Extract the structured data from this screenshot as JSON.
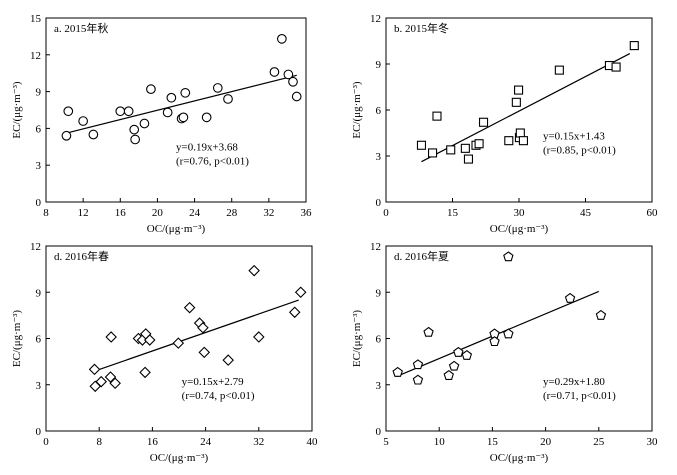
{
  "chart_data": [
    {
      "type": "scatter",
      "id": "a",
      "title": "a. 2015年秋",
      "xlabel": "OC/(μg·m⁻³)",
      "ylabel": "EC/(μg·m⁻³)",
      "xlim": [
        8,
        36
      ],
      "ylim": [
        0,
        15
      ],
      "xticks": [
        8,
        12,
        16,
        20,
        24,
        28,
        32,
        36
      ],
      "yticks": [
        0,
        3,
        6,
        9,
        12,
        15
      ],
      "marker": "circle",
      "points": [
        [
          10.2,
          5.4
        ],
        [
          10.4,
          7.4
        ],
        [
          12.0,
          6.6
        ],
        [
          13.1,
          5.5
        ],
        [
          16.0,
          7.4
        ],
        [
          16.9,
          7.4
        ],
        [
          17.5,
          5.9
        ],
        [
          17.6,
          5.1
        ],
        [
          18.6,
          6.4
        ],
        [
          19.3,
          9.2
        ],
        [
          21.1,
          7.3
        ],
        [
          21.5,
          8.5
        ],
        [
          22.6,
          6.8
        ],
        [
          22.8,
          6.9
        ],
        [
          23.0,
          8.9
        ],
        [
          25.3,
          6.9
        ],
        [
          26.5,
          9.3
        ],
        [
          27.6,
          8.4
        ],
        [
          32.6,
          10.6
        ],
        [
          33.4,
          13.3
        ],
        [
          34.1,
          10.4
        ],
        [
          34.6,
          9.8
        ],
        [
          35.0,
          8.6
        ]
      ],
      "fit": {
        "slope": 0.19,
        "intercept": 3.68,
        "range": [
          10,
          35
        ]
      },
      "equation": "y=0.19x+3.68",
      "stats": "(r=0.76, p<0.01)"
    },
    {
      "type": "scatter",
      "id": "b",
      "title": "b. 2015年冬",
      "xlabel": "OC/(μg·m⁻³)",
      "ylabel": "EC/(μg·m⁻³)",
      "xlim": [
        0,
        60
      ],
      "ylim": [
        0,
        12
      ],
      "xticks": [
        0,
        15,
        30,
        45,
        60
      ],
      "yticks": [
        0,
        3,
        6,
        9,
        12
      ],
      "marker": "square",
      "points": [
        [
          8.0,
          3.7
        ],
        [
          10.5,
          3.2
        ],
        [
          11.5,
          5.6
        ],
        [
          14.6,
          3.4
        ],
        [
          17.9,
          3.5
        ],
        [
          18.6,
          2.8
        ],
        [
          20.3,
          3.7
        ],
        [
          21.0,
          3.8
        ],
        [
          22.0,
          5.2
        ],
        [
          27.7,
          4.0
        ],
        [
          29.4,
          6.5
        ],
        [
          29.9,
          7.3
        ],
        [
          30.1,
          4.2
        ],
        [
          30.3,
          4.5
        ],
        [
          31.0,
          4.0
        ],
        [
          39.1,
          8.6
        ],
        [
          50.4,
          8.9
        ],
        [
          51.9,
          8.8
        ],
        [
          56.0,
          10.2
        ]
      ],
      "fit": {
        "slope": 0.15,
        "intercept": 1.43,
        "range": [
          8,
          55
        ]
      },
      "equation": "y=0.15x+1.43",
      "stats": "(r=0.85, p<0.01)"
    },
    {
      "type": "scatter",
      "id": "c",
      "title": "d. 2016年春",
      "xlabel": "OC/(μg·m⁻³)",
      "ylabel": "EC/(μg·m⁻³)",
      "xlim": [
        0,
        40
      ],
      "ylim": [
        0,
        12
      ],
      "xticks": [
        0,
        8,
        16,
        24,
        32,
        40
      ],
      "yticks": [
        0,
        3,
        6,
        9,
        12
      ],
      "marker": "diamond",
      "points": [
        [
          7.3,
          4.0
        ],
        [
          7.4,
          2.9
        ],
        [
          8.3,
          3.2
        ],
        [
          9.7,
          3.5
        ],
        [
          9.8,
          6.1
        ],
        [
          10.4,
          3.1
        ],
        [
          13.9,
          6.0
        ],
        [
          14.5,
          5.9
        ],
        [
          14.9,
          3.8
        ],
        [
          15.0,
          6.3
        ],
        [
          15.6,
          5.9
        ],
        [
          19.9,
          5.7
        ],
        [
          21.6,
          8.0
        ],
        [
          23.1,
          7.0
        ],
        [
          23.6,
          6.7
        ],
        [
          23.8,
          5.1
        ],
        [
          27.4,
          4.6
        ],
        [
          31.3,
          10.4
        ],
        [
          32.0,
          6.1
        ],
        [
          37.4,
          7.7
        ],
        [
          38.3,
          9.0
        ]
      ],
      "fit": {
        "slope": 0.15,
        "intercept": 2.79,
        "range": [
          7,
          38
        ]
      },
      "equation": "y=0.15x+2.79",
      "stats": "(r=0.74, p<0.01)"
    },
    {
      "type": "scatter",
      "id": "d",
      "title": "d. 2016年夏",
      "xlabel": "OC/(μg·m⁻³)",
      "ylabel": "EC/(μg·m⁻³)",
      "xlim": [
        5,
        30
      ],
      "ylim": [
        0,
        12
      ],
      "xticks": [
        5,
        10,
        15,
        20,
        25,
        30
      ],
      "yticks": [
        0,
        3,
        6,
        9,
        12
      ],
      "marker": "pentagon",
      "points": [
        [
          6.1,
          3.8
        ],
        [
          8.0,
          4.3
        ],
        [
          8.0,
          3.3
        ],
        [
          9.0,
          6.4
        ],
        [
          10.9,
          3.6
        ],
        [
          11.4,
          4.2
        ],
        [
          11.8,
          5.1
        ],
        [
          12.6,
          4.9
        ],
        [
          15.2,
          6.3
        ],
        [
          15.2,
          5.8
        ],
        [
          16.5,
          6.3
        ],
        [
          16.5,
          11.3
        ],
        [
          22.3,
          8.6
        ],
        [
          25.2,
          7.5
        ]
      ],
      "fit": {
        "slope": 0.29,
        "intercept": 1.8,
        "range": [
          6,
          25
        ]
      },
      "equation": "y=0.29x+1.80",
      "stats": "(r=0.71, p<0.01)"
    }
  ]
}
